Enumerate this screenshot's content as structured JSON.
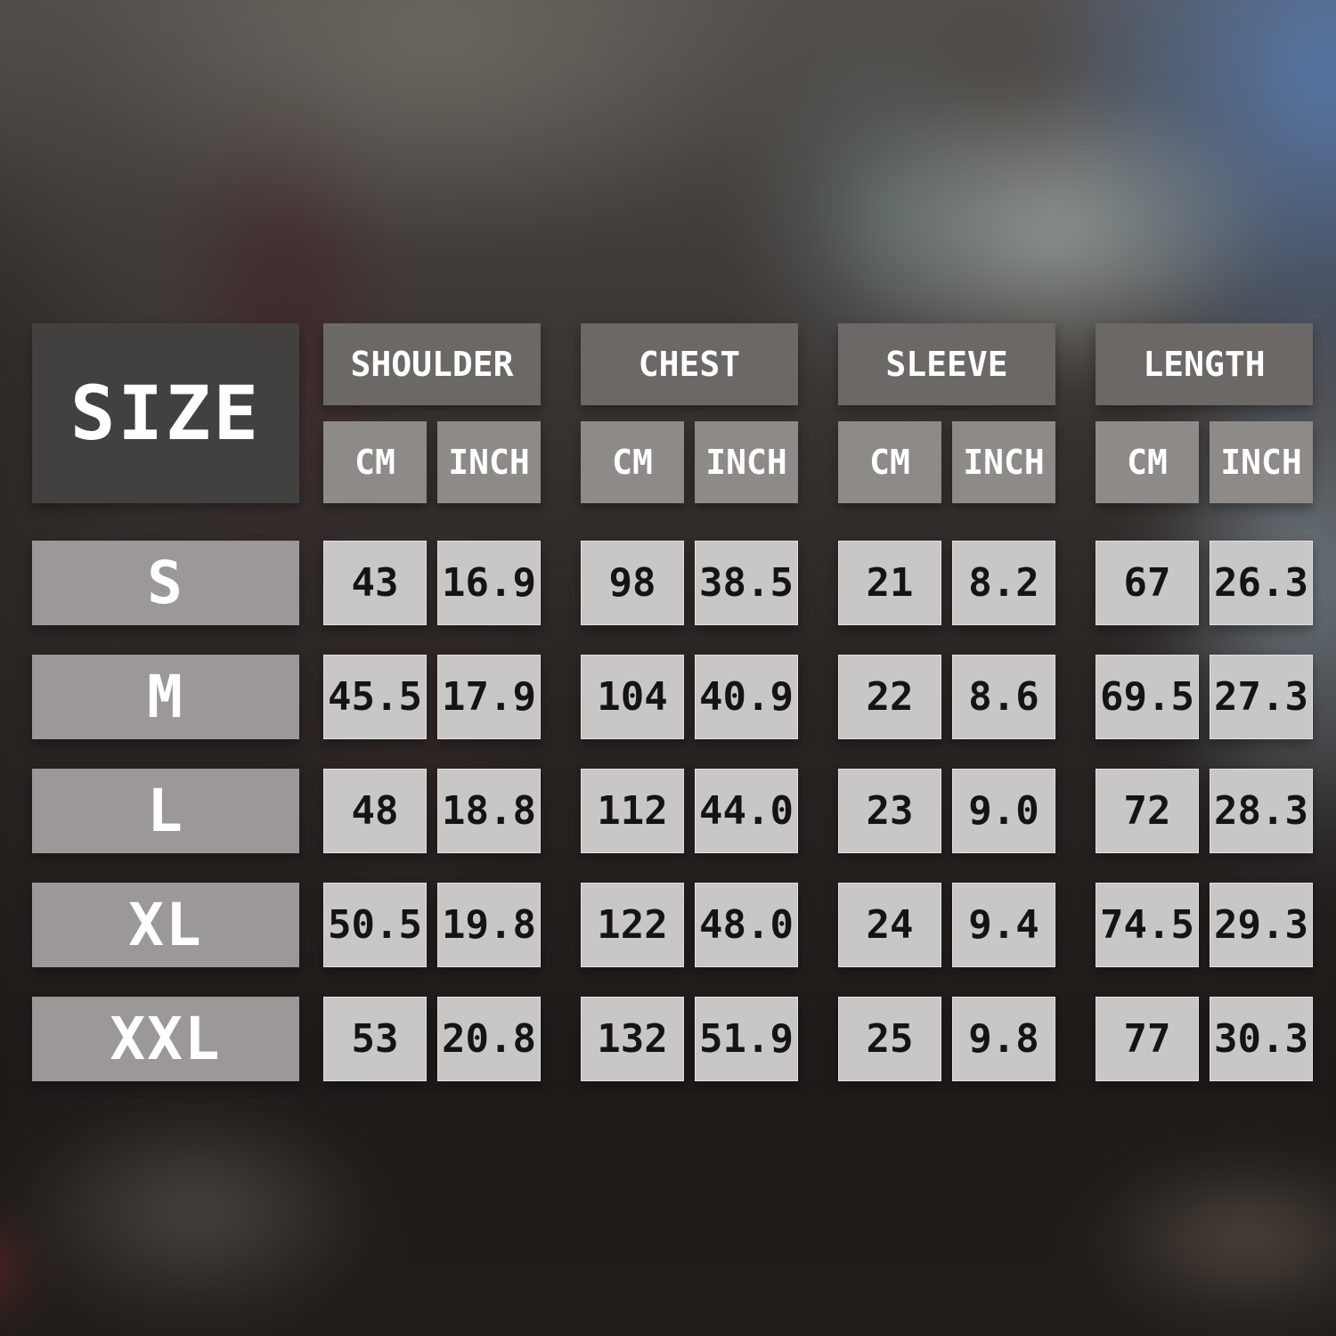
{
  "meta": {
    "description": "Apparel size chart table overlaid on a blurred photo background"
  },
  "chart_data": {
    "type": "table",
    "title": "SIZE",
    "column_groups": [
      "SHOULDER",
      "CHEST",
      "SLEEVE",
      "LENGTH"
    ],
    "units": [
      "CM",
      "INCH"
    ],
    "columns": [
      "SIZE",
      "SHOULDER CM",
      "SHOULDER INCH",
      "CHEST CM",
      "CHEST INCH",
      "SLEEVE CM",
      "SLEEVE INCH",
      "LENGTH CM",
      "LENGTH INCH"
    ],
    "rows": [
      [
        "S",
        "43",
        "16.9",
        "98",
        "38.5",
        "21",
        "8.2",
        "67",
        "26.3"
      ],
      [
        "M",
        "45.5",
        "17.9",
        "104",
        "40.9",
        "22",
        "8.6",
        "69.5",
        "27.3"
      ],
      [
        "L",
        "48",
        "18.8",
        "112",
        "44.0",
        "23",
        "9.0",
        "72",
        "28.3"
      ],
      [
        "XL",
        "50.5",
        "19.8",
        "122",
        "48.0",
        "24",
        "9.4",
        "74.5",
        "29.3"
      ],
      [
        "XXL",
        "53",
        "20.8",
        "132",
        "51.9",
        "25",
        "9.8",
        "77",
        "30.3"
      ]
    ]
  },
  "colors": {
    "size_title_box": "#434040",
    "group_header_box": "#6b6866",
    "unit_header_box": "#8d8a88",
    "row_label_box": "#9b9897",
    "data_cell_box": "#c9c7c5",
    "header_text": "#ffffff",
    "cell_text": "#161412",
    "background_sky_blue": "#5678aa",
    "background_dark": "#221e1c"
  }
}
